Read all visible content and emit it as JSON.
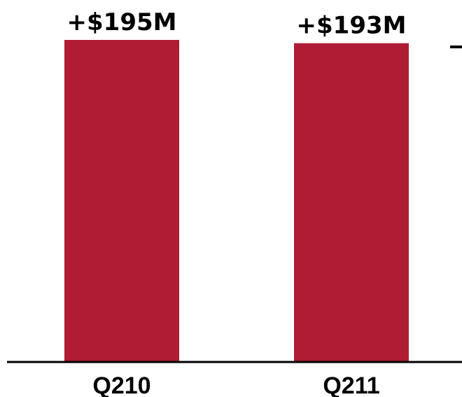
{
  "chart_data": {
    "type": "bar",
    "categories": [
      "Q210",
      "Q211"
    ],
    "values": [
      195,
      193
    ],
    "data_labels": [
      "+$195M",
      "+$193M"
    ],
    "unit": "$M",
    "ylim": [
      0,
      195
    ],
    "grid": false,
    "colors": {
      "bar": "#B01C33",
      "axis": "#000000",
      "text": "#000000"
    }
  }
}
